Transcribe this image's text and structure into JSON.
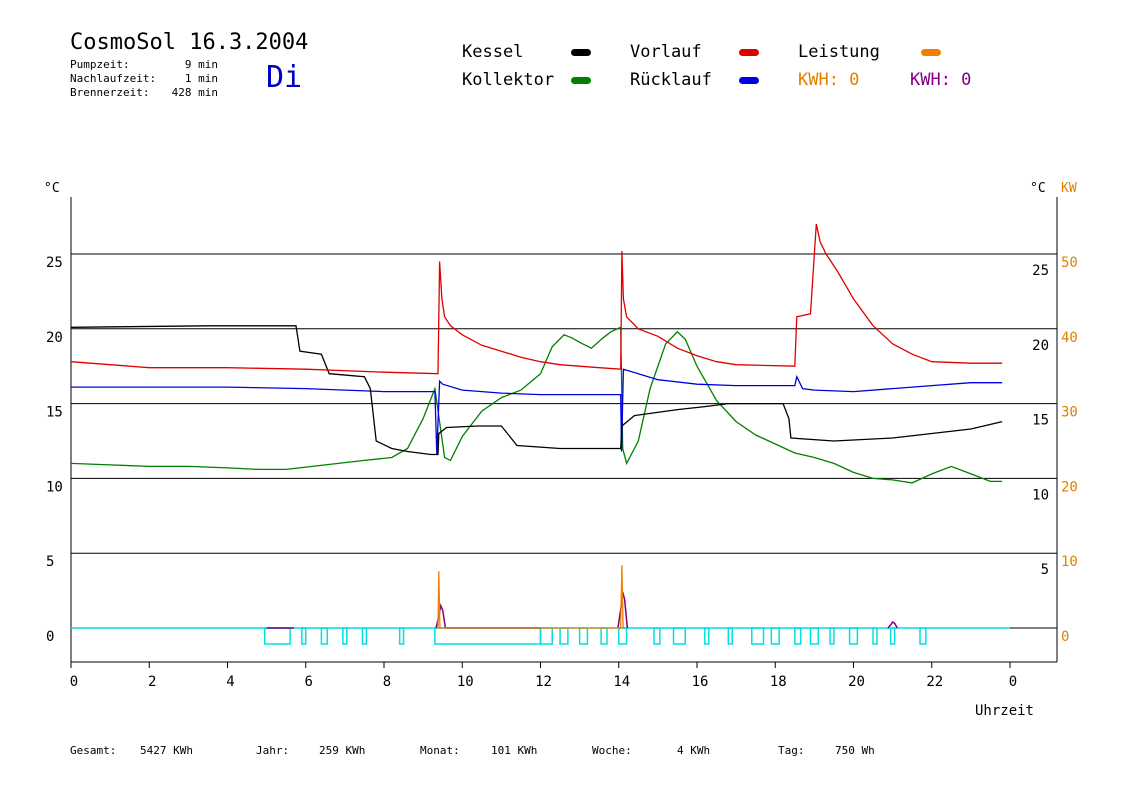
{
  "header": {
    "title": "CosmoSol 16.3.2004",
    "day": "Di",
    "pump": {
      "label": "Pumpzeit:",
      "value": "9 min"
    },
    "nachlauf": {
      "label": "Nachlaufzeit:",
      "value": "1 min"
    },
    "brenner": {
      "label": "Brennerzeit:",
      "value": "428 min"
    }
  },
  "legend": {
    "kessel": "Kessel",
    "vorlauf": "Vorlauf",
    "leistung": "Leistung",
    "kollektor": "Kollektor",
    "ruecklauf": "Rücklauf",
    "kwh1": "KWH: 0",
    "kwh2": "KWH: 0"
  },
  "colors": {
    "kessel": "#000000",
    "vorlauf": "#e00000",
    "leistung": "#f08000",
    "kollektor": "#008000",
    "ruecklauf": "#0000e0",
    "kwh1": "#e08000",
    "kwh2": "#800080",
    "baseline": "#00e0e0"
  },
  "footer": {
    "gesamt": {
      "label": "Gesamt:",
      "value": "5427 KWh"
    },
    "jahr": {
      "label": "Jahr:",
      "value": "259 KWh"
    },
    "monat": {
      "label": "Monat:",
      "value": "101 KWh"
    },
    "woche": {
      "label": "Woche:",
      "value": "4 KWh"
    },
    "tag": {
      "label": "Tag:",
      "value": "750 Wh"
    }
  },
  "chart_data": {
    "type": "line",
    "xlabel": "Uhrzeit",
    "x_ticks": [
      "0",
      "2",
      "4",
      "6",
      "8",
      "10",
      "12",
      "14",
      "16",
      "18",
      "20",
      "22",
      "0"
    ],
    "x_range": [
      0,
      24
    ],
    "left_unit": "°C",
    "left_ticks": [
      "25",
      "20",
      "15",
      "10",
      "5",
      "0"
    ],
    "ylim": [
      -1.7,
      27
    ],
    "right_unit": "°C",
    "right_unit2": "KW",
    "right_ticks_c": [
      "25",
      "20",
      "15",
      "10",
      "5"
    ],
    "right_ticks_kw": [
      "50",
      "40",
      "30",
      "20",
      "10",
      "0"
    ],
    "series": [
      {
        "name": "Kessel",
        "color_key": "kessel",
        "x": [
          0,
          3.5,
          5.75,
          5.85,
          6.4,
          6.6,
          7.5,
          7.65,
          7.8,
          8.2,
          8.6,
          9.2,
          9.38,
          9.4,
          9.6,
          10.4,
          11.0,
          11.4,
          12.5,
          13.8,
          14.05,
          14.08,
          14.4,
          15.5,
          16.2,
          16.8,
          17.5,
          18.2,
          18.35,
          18.4,
          19.5,
          21.0,
          22.0,
          23.0,
          23.8
        ],
        "y": [
          20.1,
          20.2,
          20.2,
          18.5,
          18.3,
          17.0,
          16.8,
          16.0,
          12.5,
          12.0,
          11.8,
          11.6,
          11.6,
          13.0,
          13.4,
          13.5,
          13.5,
          12.2,
          12.0,
          12.0,
          12.0,
          13.5,
          14.2,
          14.6,
          14.8,
          15.0,
          15.0,
          15.0,
          14.0,
          12.7,
          12.5,
          12.7,
          13.0,
          13.3,
          13.8
        ]
      },
      {
        "name": "Vorlauf",
        "color_key": "vorlauf",
        "x": [
          0,
          1,
          2,
          4,
          6,
          8,
          9.38,
          9.42,
          9.48,
          9.55,
          9.7,
          10,
          10.5,
          11,
          11.5,
          12,
          12.5,
          13,
          13.5,
          14.05,
          14.08,
          14.12,
          14.2,
          14.5,
          15,
          15.5,
          16,
          16.5,
          17,
          18.5,
          18.55,
          18.9,
          19.05,
          19.15,
          19.3,
          19.6,
          20,
          20.5,
          21,
          21.5,
          22,
          23,
          23.8
        ],
        "y": [
          17.8,
          17.6,
          17.4,
          17.4,
          17.3,
          17.1,
          17.0,
          24.5,
          22.0,
          20.8,
          20.2,
          19.6,
          18.9,
          18.5,
          18.1,
          17.8,
          17.6,
          17.5,
          17.4,
          17.3,
          25.2,
          22.0,
          20.8,
          20.0,
          19.5,
          18.7,
          18.2,
          17.8,
          17.6,
          17.5,
          20.8,
          21.0,
          27.0,
          25.8,
          25.0,
          23.8,
          22.0,
          20.2,
          19.0,
          18.3,
          17.8,
          17.7,
          17.7
        ]
      },
      {
        "name": "Rücklauf",
        "color_key": "ruecklauf",
        "x": [
          0,
          4,
          6,
          7,
          8,
          9.3,
          9.35,
          9.42,
          9.5,
          10,
          11,
          12,
          13,
          14.05,
          14.07,
          14.12,
          14.5,
          15,
          16,
          17,
          18.5,
          18.55,
          18.7,
          19,
          20,
          21,
          22,
          23,
          23.8
        ],
        "y": [
          16.1,
          16.1,
          16.0,
          15.9,
          15.8,
          15.8,
          11.6,
          16.5,
          16.3,
          15.9,
          15.7,
          15.6,
          15.6,
          15.6,
          11.8,
          17.3,
          17.0,
          16.6,
          16.3,
          16.2,
          16.2,
          16.8,
          16.0,
          15.9,
          15.8,
          16.0,
          16.2,
          16.4,
          16.4
        ]
      },
      {
        "name": "Kollektor",
        "color_key": "kollektor",
        "x": [
          0,
          1,
          2,
          3,
          4,
          4.8,
          5.5,
          6.5,
          7.5,
          8.2,
          8.6,
          9.0,
          9.3,
          9.55,
          9.7,
          10,
          10.5,
          11,
          11.5,
          12,
          12.3,
          12.6,
          12.8,
          13.0,
          13.3,
          13.6,
          13.8,
          14.05,
          14.1,
          14.2,
          14.5,
          14.8,
          15.2,
          15.5,
          15.7,
          16,
          16.5,
          17,
          17.5,
          18,
          18.5,
          19,
          19.5,
          20,
          20.5,
          21,
          21.5,
          22,
          22.5,
          23,
          23.5,
          23.8
        ],
        "y": [
          11.0,
          10.9,
          10.8,
          10.8,
          10.7,
          10.6,
          10.6,
          10.9,
          11.2,
          11.4,
          12.0,
          14.0,
          16.0,
          11.4,
          11.2,
          12.8,
          14.5,
          15.4,
          15.9,
          17.0,
          18.8,
          19.6,
          19.4,
          19.1,
          18.7,
          19.4,
          19.8,
          20.1,
          12.0,
          11.0,
          12.5,
          16.0,
          19.0,
          19.8,
          19.3,
          17.5,
          15.2,
          13.8,
          12.9,
          12.3,
          11.7,
          11.4,
          11.0,
          10.4,
          10.0,
          9.9,
          9.7,
          10.3,
          10.8,
          10.3,
          9.8,
          9.8
        ]
      },
      {
        "name": "Leistung",
        "color_key": "leistung",
        "x": [
          9.35,
          9.38,
          9.4,
          9.43,
          9.47,
          14.02,
          14.05,
          14.08,
          14.11,
          14.15
        ],
        "y": [
          0,
          0,
          3.8,
          0,
          0,
          0,
          0,
          4.2,
          0,
          0
        ]
      }
    ]
  }
}
